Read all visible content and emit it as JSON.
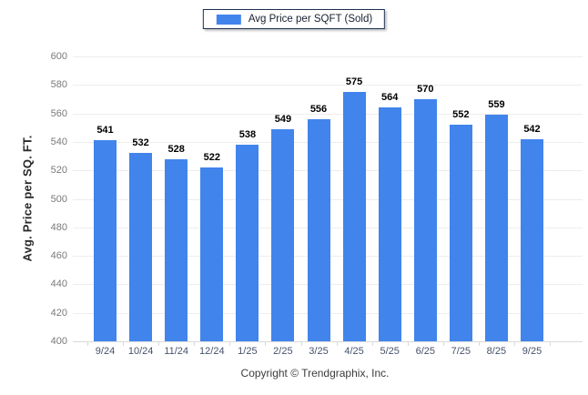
{
  "chart_data": {
    "type": "bar",
    "title": "",
    "categories": [
      "9/24",
      "10/24",
      "11/24",
      "12/24",
      "1/25",
      "2/25",
      "3/25",
      "4/25",
      "5/25",
      "6/25",
      "7/25",
      "8/25",
      "9/25"
    ],
    "series": [
      {
        "name": "Avg Price per SQFT (Sold)",
        "values": [
          541,
          532,
          528,
          522,
          538,
          549,
          556,
          575,
          564,
          570,
          552,
          559,
          542
        ],
        "color": "#4184EC"
      }
    ],
    "xlabel": "",
    "ylabel": "Avg. Price per SQ. FT.",
    "ylim": [
      400,
      600
    ],
    "ytick_step": 20,
    "grid": "horizontal",
    "legend_position": "top-center",
    "value_labels": true
  },
  "footer": {
    "copyright": "Copyright © Trendgraphix, Inc."
  },
  "colors": {
    "bar": "#4184EC",
    "gridline": "#EDEDED",
    "baseline": "#D9D9D9",
    "y_tick_text": "#7A7A7A",
    "x_tick_text": "#45526B",
    "value_text": "#000000",
    "legend_border": "#1C3050",
    "axis_title_text": "#2A2A2A",
    "footer_text": "#3C3C3C",
    "background": "#FFFFFF"
  }
}
